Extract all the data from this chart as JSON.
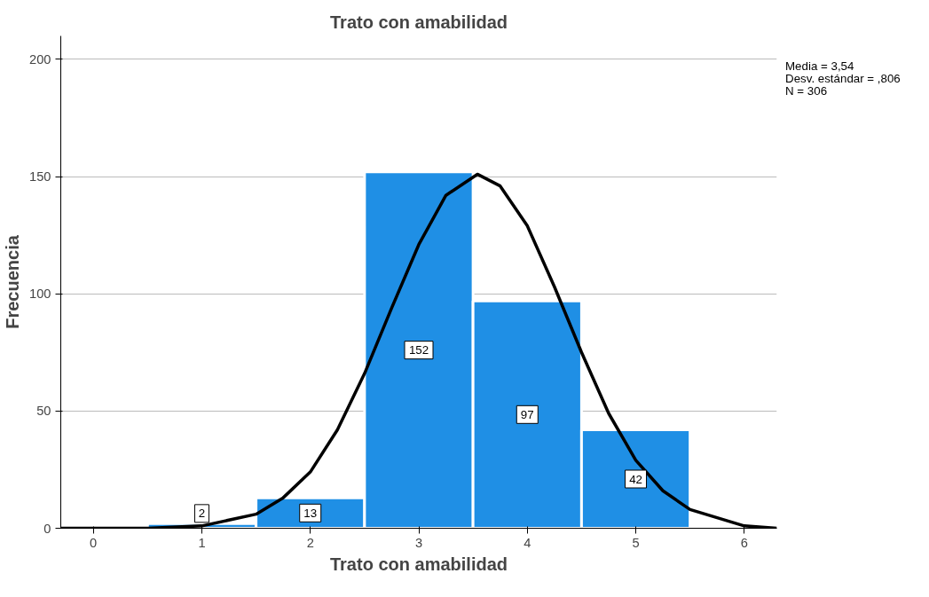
{
  "chart_data": {
    "type": "histogram",
    "title": "Trato con amabilidad",
    "xlabel": "Trato con amabilidad",
    "ylabel": "Frecuencia",
    "bins": [
      0.5,
      1.5,
      2.5,
      3.5,
      4.5,
      5.5
    ],
    "values": [
      2,
      13,
      152,
      97,
      42
    ],
    "color": "#1f8fe5",
    "value_labels": [
      "2",
      "13",
      "152",
      "97",
      "42"
    ],
    "series": [
      {
        "type": "line",
        "color": "#000000",
        "x": [
          -0.3,
          0,
          0.5,
          1,
          1.5,
          1.75,
          2,
          2.25,
          2.5,
          2.75,
          3,
          3.25,
          3.54,
          3.75,
          4,
          4.25,
          4.5,
          4.75,
          5,
          5.25,
          5.5,
          6,
          6.3
        ],
        "values": [
          0,
          0,
          0,
          1,
          6,
          13,
          24,
          42,
          66,
          94,
          121,
          142,
          151,
          146,
          129,
          103,
          75,
          49,
          29,
          16,
          8,
          1,
          0
        ]
      }
    ],
    "xlim": [
      -0.3,
      6.3
    ],
    "ylim": [
      0,
      210
    ],
    "xticks": [
      0,
      1,
      2,
      3,
      4,
      5,
      6
    ],
    "yticks": [
      0,
      50,
      100,
      150,
      200
    ],
    "grid": "y",
    "annotations": [
      "Media = 3,54",
      "Desv. estándar = ,806",
      "N = 306"
    ]
  }
}
